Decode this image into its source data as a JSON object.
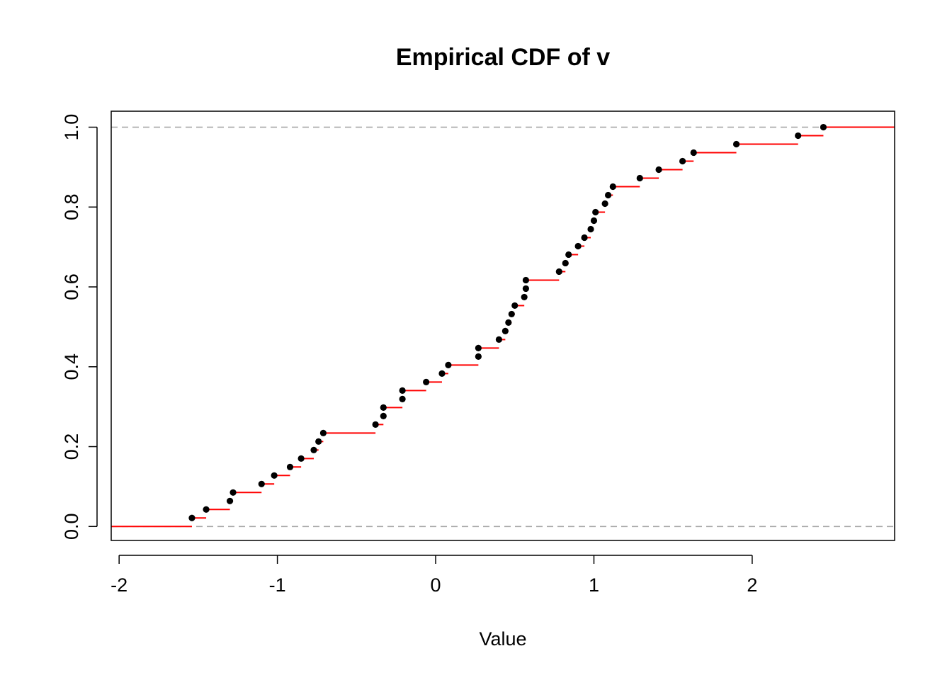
{
  "chart_data": {
    "type": "step",
    "title": "Empirical CDF of v",
    "xlabel": "Value",
    "ylabel": "",
    "xlim": [
      -2.05,
      2.9
    ],
    "ylim": [
      -0.035,
      1.04
    ],
    "x_ticks": [
      {
        "value": -2,
        "label": "-2"
      },
      {
        "value": -1,
        "label": "-1"
      },
      {
        "value": 0,
        "label": "0"
      },
      {
        "value": 1,
        "label": "1"
      },
      {
        "value": 2,
        "label": "2"
      }
    ],
    "y_ticks": [
      {
        "value": 0.0,
        "label": "0.0"
      },
      {
        "value": 0.2,
        "label": "0.2"
      },
      {
        "value": 0.4,
        "label": "0.4"
      },
      {
        "value": 0.6,
        "label": "0.6"
      },
      {
        "value": 0.8,
        "label": "0.8"
      },
      {
        "value": 1.0,
        "label": "1.0"
      }
    ],
    "reference_lines_y": [
      0,
      1
    ],
    "points": [
      -1.54,
      -1.45,
      -1.3,
      -1.28,
      -1.1,
      -1.02,
      -0.92,
      -0.85,
      -0.77,
      -0.74,
      -0.71,
      -0.38,
      -0.33,
      -0.33,
      -0.21,
      -0.21,
      -0.06,
      0.04,
      0.08,
      0.27,
      0.27,
      0.4,
      0.44,
      0.46,
      0.48,
      0.5,
      0.56,
      0.57,
      0.57,
      0.78,
      0.82,
      0.84,
      0.9,
      0.94,
      0.98,
      1.0,
      1.01,
      1.07,
      1.09,
      1.12,
      1.29,
      1.41,
      1.56,
      1.63,
      1.9,
      2.29,
      2.45
    ],
    "colors": {
      "step": "#ff0000",
      "point": "#000000",
      "reference": "#a6a6a6",
      "axis": "#000000"
    },
    "grid": false,
    "legend": "none"
  }
}
